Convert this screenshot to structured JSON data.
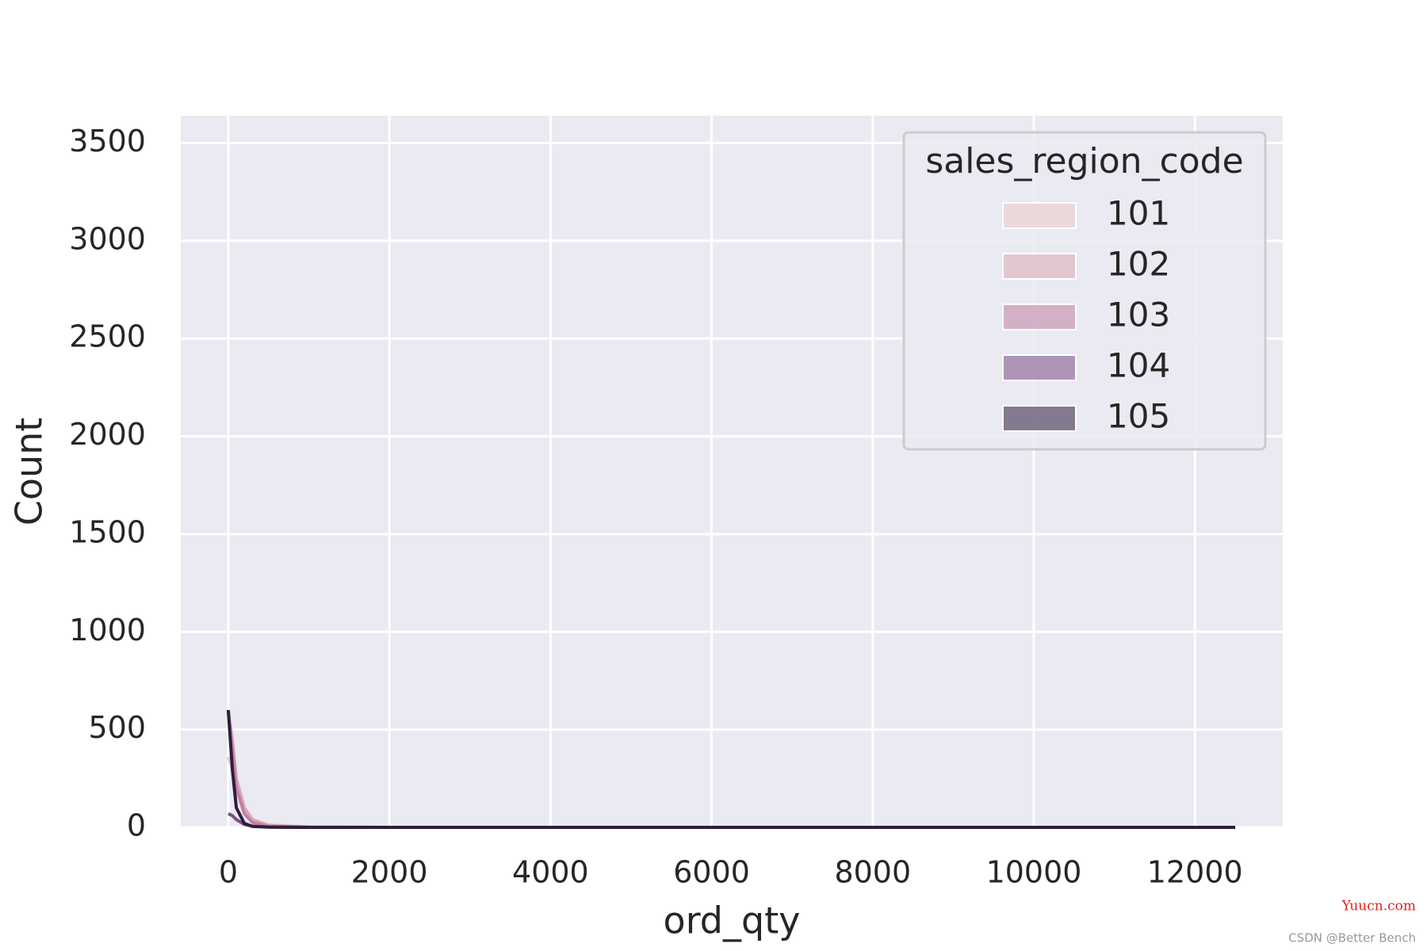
{
  "chart_data": {
    "type": "kde",
    "x_label": "ord_qty",
    "y_label": "Count",
    "xlim": [
      -590,
      13090
    ],
    "ylim": [
      0,
      3640
    ],
    "xticks": [
      0,
      2000,
      4000,
      6000,
      8000,
      10000,
      12000
    ],
    "yticks": [
      0,
      500,
      1000,
      1500,
      2000,
      2500,
      3000,
      3500
    ],
    "grid": true,
    "legend_position": "upper right",
    "legend_title": "sales_region_code",
    "x": [
      0,
      50,
      100,
      200,
      300,
      500,
      1000,
      2000,
      5000,
      12500
    ],
    "series": [
      {
        "name": "101",
        "color": "#ebc9c6",
        "values": [
          360,
          300,
          200,
          90,
          40,
          12,
          3,
          1,
          0,
          0
        ]
      },
      {
        "name": "102",
        "color": "#dba7b6",
        "values": [
          600,
          450,
          250,
          100,
          40,
          10,
          2,
          0,
          0,
          0
        ]
      },
      {
        "name": "103",
        "color": "#c080a4",
        "values": [
          590,
          400,
          200,
          70,
          25,
          6,
          1,
          0,
          0,
          0
        ]
      },
      {
        "name": "104",
        "color": "#7d4f84",
        "values": [
          70,
          60,
          40,
          15,
          6,
          2,
          0,
          0,
          0,
          0
        ]
      },
      {
        "name": "105",
        "color": "#2d1e3e",
        "values": [
          600,
          300,
          100,
          20,
          5,
          1,
          0,
          0,
          0,
          0
        ]
      }
    ]
  },
  "watermarks": [
    "Yuucn.com",
    "CSDN @Better Bench"
  ]
}
